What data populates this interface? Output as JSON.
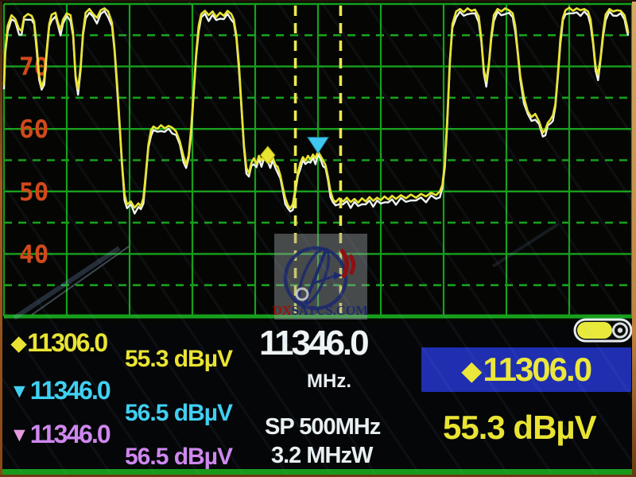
{
  "colors": {
    "grid_green": "#17a01c",
    "tick_label_orange": "#d2491a",
    "trace_yellow": "#e9e432",
    "trace_white": "#eef4f0",
    "cursor_yellow": "#ede84e",
    "marker_cyan": "#3fc8ee",
    "marker_violet": "#cf87ef",
    "selected_box_blue": "#1f2fb0",
    "battery_yellow": "#e9e93c"
  },
  "chart_data": {
    "type": "line",
    "description": "Satellite meter spectrum sweep, level vs frequency",
    "ylabel": "dBµV",
    "xlabel": "MHz",
    "ylim": [
      30,
      80
    ],
    "y_ticks": [
      70,
      60,
      50,
      40
    ],
    "x_range_mhz": [
      11096,
      11596
    ],
    "center_mhz": 11346.0,
    "span_mhz": 500,
    "grid": "major green solid + half-division dashed",
    "legend": "none",
    "cursor_lines_mhz": [
      11328,
      11364
    ],
    "markers": [
      {
        "shape": "diamond",
        "color": "#e9e432",
        "freq_mhz": 11306.0,
        "level_db": 55.3
      },
      {
        "shape": "triangle-down",
        "color": "#3fc8ee",
        "freq_mhz": 11346.0,
        "level_db": 56.5
      }
    ],
    "series": [
      {
        "name": "live sweep (yellow)",
        "color": "#e9e432",
        "points": [
          [
            11096,
            67.0
          ],
          [
            11097,
            72.5
          ],
          [
            11099,
            76.5
          ],
          [
            11102,
            78.2
          ],
          [
            11105,
            77.6
          ],
          [
            11108,
            76.0
          ],
          [
            11110,
            75.7
          ],
          [
            11112,
            77.9
          ],
          [
            11115,
            78.4
          ],
          [
            11118,
            78.1
          ],
          [
            11120,
            77.2
          ],
          [
            11122,
            73.5
          ],
          [
            11124,
            68.5
          ],
          [
            11126,
            66.7
          ],
          [
            11128,
            68.0
          ],
          [
            11130,
            72.5
          ],
          [
            11132,
            76.8
          ],
          [
            11134,
            78.3
          ],
          [
            11137,
            78.6
          ],
          [
            11139,
            77.0
          ],
          [
            11141,
            75.9
          ],
          [
            11143,
            77.5
          ],
          [
            11146,
            78.5
          ],
          [
            11149,
            78.2
          ],
          [
            11151,
            75.5
          ],
          [
            11153,
            68.5
          ],
          [
            11155,
            66.4
          ],
          [
            11157,
            70.0
          ],
          [
            11159,
            75.5
          ],
          [
            11161,
            78.6
          ],
          [
            11164,
            79.2
          ],
          [
            11167,
            78.4
          ],
          [
            11170,
            77.8
          ],
          [
            11173,
            79.0
          ],
          [
            11176,
            79.3
          ],
          [
            11179,
            78.8
          ],
          [
            11182,
            77.0
          ],
          [
            11184,
            73.0
          ],
          [
            11186,
            67.5
          ],
          [
            11188,
            61.0
          ],
          [
            11190,
            54.5
          ],
          [
            11192,
            49.5
          ],
          [
            11194,
            47.9
          ],
          [
            11197,
            48.4
          ],
          [
            11200,
            47.4
          ],
          [
            11203,
            48.1
          ],
          [
            11205,
            47.6
          ],
          [
            11207,
            49.0
          ],
          [
            11209,
            53.0
          ],
          [
            11211,
            57.5
          ],
          [
            11213,
            59.8
          ],
          [
            11215,
            60.4
          ],
          [
            11218,
            60.0
          ],
          [
            11221,
            60.6
          ],
          [
            11224,
            60.1
          ],
          [
            11227,
            60.5
          ],
          [
            11230,
            60.2
          ],
          [
            11233,
            59.6
          ],
          [
            11236,
            58.0
          ],
          [
            11239,
            55.6
          ],
          [
            11241,
            54.3
          ],
          [
            11243,
            55.8
          ],
          [
            11245,
            60.0
          ],
          [
            11247,
            66.0
          ],
          [
            11249,
            72.0
          ],
          [
            11251,
            76.5
          ],
          [
            11253,
            78.4
          ],
          [
            11256,
            78.9
          ],
          [
            11259,
            78.2
          ],
          [
            11262,
            78.8
          ],
          [
            11265,
            77.9
          ],
          [
            11268,
            78.6
          ],
          [
            11271,
            78.1
          ],
          [
            11274,
            78.9
          ],
          [
            11277,
            78.4
          ],
          [
            11279,
            77.5
          ],
          [
            11281,
            75.0
          ],
          [
            11283,
            70.5
          ],
          [
            11285,
            64.0
          ],
          [
            11287,
            57.5
          ],
          [
            11289,
            53.8
          ],
          [
            11291,
            52.9
          ],
          [
            11293,
            54.6
          ],
          [
            11295,
            55.3
          ],
          [
            11297,
            54.4
          ],
          [
            11299,
            55.7
          ],
          [
            11301,
            54.9
          ],
          [
            11303,
            55.8
          ],
          [
            11306,
            55.3
          ],
          [
            11308,
            54.7
          ],
          [
            11310,
            55.5
          ],
          [
            11312,
            54.3
          ],
          [
            11314,
            53.9
          ],
          [
            11316,
            52.6
          ],
          [
            11318,
            50.6
          ],
          [
            11320,
            48.9
          ],
          [
            11322,
            47.8
          ],
          [
            11324,
            47.3
          ],
          [
            11326,
            48.0
          ],
          [
            11328,
            50.5
          ],
          [
            11330,
            53.0
          ],
          [
            11332,
            54.6
          ],
          [
            11334,
            55.5
          ],
          [
            11336,
            54.9
          ],
          [
            11338,
            55.7
          ],
          [
            11340,
            55.1
          ],
          [
            11342,
            55.9
          ],
          [
            11344,
            55.3
          ],
          [
            11346,
            56.4
          ],
          [
            11348,
            55.7
          ],
          [
            11350,
            55.0
          ],
          [
            11352,
            54.2
          ],
          [
            11354,
            52.3
          ],
          [
            11356,
            50.0
          ],
          [
            11358,
            48.7
          ],
          [
            11360,
            48.3
          ],
          [
            11363,
            48.9
          ],
          [
            11366,
            48.4
          ],
          [
            11369,
            49.0
          ],
          [
            11372,
            48.3
          ],
          [
            11375,
            48.8
          ],
          [
            11378,
            48.2
          ],
          [
            11381,
            48.9
          ],
          [
            11384,
            48.4
          ],
          [
            11387,
            49.1
          ],
          [
            11390,
            48.5
          ],
          [
            11393,
            49.0
          ],
          [
            11396,
            48.6
          ],
          [
            11399,
            49.2
          ],
          [
            11402,
            48.7
          ],
          [
            11405,
            49.3
          ],
          [
            11408,
            48.8
          ],
          [
            11412,
            49.4
          ],
          [
            11416,
            48.9
          ],
          [
            11420,
            49.5
          ],
          [
            11424,
            49.0
          ],
          [
            11428,
            49.6
          ],
          [
            11432,
            49.2
          ],
          [
            11436,
            49.8
          ],
          [
            11440,
            49.4
          ],
          [
            11443,
            50.0
          ],
          [
            11445,
            51.0
          ],
          [
            11447,
            54.5
          ],
          [
            11449,
            62.0
          ],
          [
            11451,
            71.0
          ],
          [
            11453,
            76.8
          ],
          [
            11456,
            78.8
          ],
          [
            11459,
            79.2
          ],
          [
            11462,
            78.7
          ],
          [
            11465,
            79.3
          ],
          [
            11468,
            78.9
          ],
          [
            11471,
            79.1
          ],
          [
            11474,
            78.0
          ],
          [
            11476,
            74.5
          ],
          [
            11478,
            69.5
          ],
          [
            11480,
            67.7
          ],
          [
            11482,
            70.5
          ],
          [
            11484,
            75.0
          ],
          [
            11486,
            78.2
          ],
          [
            11489,
            79.2
          ],
          [
            11492,
            78.8
          ],
          [
            11495,
            79.3
          ],
          [
            11498,
            79.0
          ],
          [
            11501,
            78.5
          ],
          [
            11503,
            76.5
          ],
          [
            11505,
            72.5
          ],
          [
            11507,
            68.5
          ],
          [
            11510,
            65.0
          ],
          [
            11513,
            62.8
          ],
          [
            11516,
            61.9
          ],
          [
            11519,
            62.4
          ],
          [
            11522,
            61.2
          ],
          [
            11525,
            59.4
          ],
          [
            11527,
            59.9
          ],
          [
            11529,
            61.0
          ],
          [
            11531,
            61.5
          ],
          [
            11533,
            62.2
          ],
          [
            11535,
            64.0
          ],
          [
            11537,
            69.0
          ],
          [
            11539,
            74.5
          ],
          [
            11541,
            77.8
          ],
          [
            11543,
            79.0
          ],
          [
            11546,
            79.4
          ],
          [
            11549,
            78.9
          ],
          [
            11552,
            79.3
          ],
          [
            11555,
            79.0
          ],
          [
            11558,
            79.2
          ],
          [
            11561,
            78.8
          ],
          [
            11563,
            77.5
          ],
          [
            11565,
            74.0
          ],
          [
            11567,
            70.0
          ],
          [
            11569,
            68.7
          ],
          [
            11571,
            71.5
          ],
          [
            11573,
            75.5
          ],
          [
            11575,
            78.3
          ],
          [
            11578,
            79.2
          ],
          [
            11581,
            78.8
          ],
          [
            11584,
            79.0
          ],
          [
            11587,
            78.9
          ],
          [
            11590,
            78.2
          ],
          [
            11592,
            76.5
          ],
          [
            11593,
            75.3
          ]
        ]
      },
      {
        "name": "held sweep (white)",
        "color": "#eef4f0",
        "derived_from": "live sweep (yellow)",
        "offset_db": -0.65,
        "jitter_db": 0.3
      }
    ]
  },
  "readouts": {
    "marker_rows": [
      {
        "symbol": "◆",
        "freq": "11306.0",
        "level": "55.3 dBµV",
        "color": "#e9e432"
      },
      {
        "symbol": "▼",
        "freq": "11346.0",
        "level": "56.5 dBµV",
        "color": "#3fd0f2"
      },
      {
        "symbol": "▼",
        "freq": "11346.0",
        "level": "56.5 dBµV",
        "color": "#cf87ef"
      }
    ],
    "center_frequency": "11346.0",
    "frequency_unit": "MHz.",
    "span": "SP 500MHz",
    "bandwidth": "3.2 MHzW",
    "selected": {
      "symbol": "◆",
      "freq": "11306.0",
      "level": "55.3 dBµV"
    },
    "battery_state": "full"
  },
  "watermark": {
    "prefix": "DX",
    "suffix": "SATCS.COM"
  }
}
